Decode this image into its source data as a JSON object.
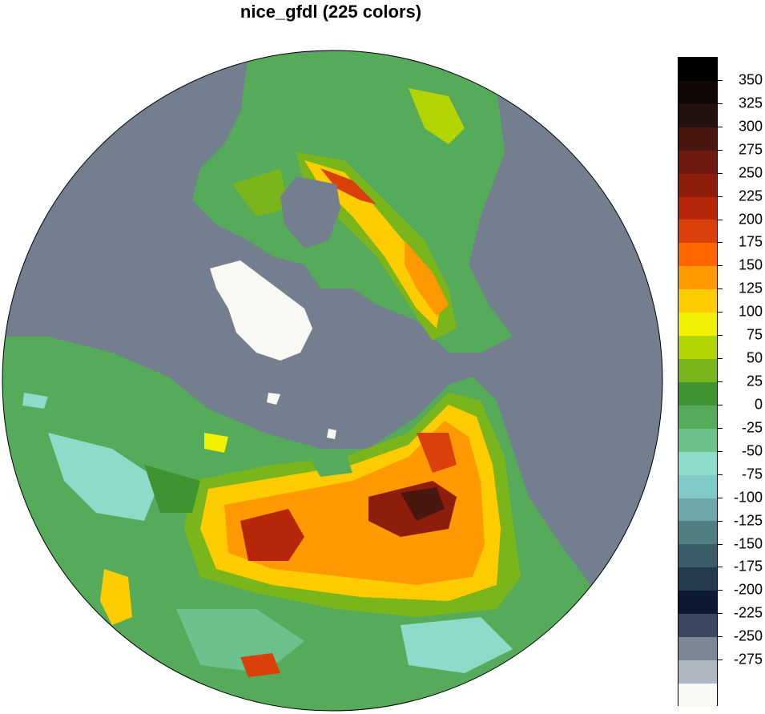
{
  "title": "nice_gfdl (225 colors)",
  "map": {
    "projection": "north-polar-stereographic",
    "ocean_color": "#737f8f",
    "ice_color": "#faf8f3"
  },
  "colorbar": {
    "levels": [
      350,
      325,
      300,
      275,
      250,
      225,
      200,
      175,
      150,
      125,
      100,
      75,
      50,
      25,
      0,
      -25,
      -50,
      -75,
      -100,
      -125,
      -150,
      -175,
      -200,
      -225,
      -250,
      -275
    ],
    "labels": [
      "350",
      "325",
      "300",
      "275",
      "250",
      "225",
      "200",
      "175",
      "150",
      "125",
      "100",
      "75",
      "50",
      "25",
      "0",
      "-25",
      "-50",
      "-75",
      "-100",
      "-125",
      "-150",
      "-175",
      "-200",
      "-225",
      "-250",
      "-275"
    ],
    "colors": [
      "#000000",
      "#110808",
      "#241210",
      "#4a1610",
      "#6e1a0e",
      "#8f1d0c",
      "#b8260a",
      "#d9400a",
      "#ff6600",
      "#ff9900",
      "#ffcc00",
      "#f0f000",
      "#b3d400",
      "#7bb51c",
      "#3f9331",
      "#55ab5a",
      "#6cc28c",
      "#8ddcc9",
      "#7fcac8",
      "#6ea5a6",
      "#4f7f80",
      "#3a5b68",
      "#253a4b",
      "#0c1a33",
      "#3a4961",
      "#7d8795",
      "#b0b6c2",
      "#faf8f3"
    ]
  }
}
